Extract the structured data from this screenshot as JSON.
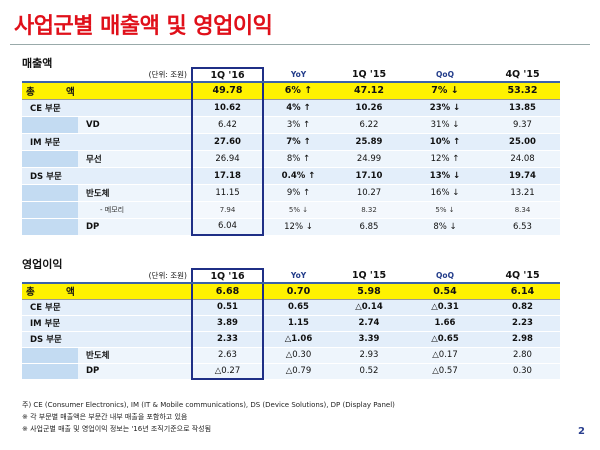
{
  "title": "사업군별 매출액 및 영업이익",
  "sections": [
    {
      "label": "매출액",
      "header": [
        "(단위: 조원)",
        "1Q '16",
        "YoY",
        "1Q '15",
        "QoQ",
        "4Q '15"
      ],
      "rows": [
        [
          "총 액",
          "49.78",
          "6% ↑",
          "47.12",
          "7% ↓",
          "53.32"
        ],
        [
          "CE 부문",
          "10.62",
          "4% ↑",
          "10.26",
          "23% ↓",
          "13.85"
        ],
        [
          "VD",
          "6.42",
          "3% ↑",
          "6.22",
          "31% ↓",
          "9.37"
        ],
        [
          "IM 부문",
          "27.60",
          "7% ↑",
          "25.89",
          "10% ↑",
          "25.00"
        ],
        [
          "무선",
          "26.94",
          "8% ↑",
          "24.99",
          "12% ↑",
          "24.08"
        ],
        [
          "DS 부문",
          "17.18",
          "0.4% ↑",
          "17.10",
          "13% ↓",
          "19.74"
        ],
        [
          "반도체",
          "11.15",
          "9% ↑",
          "10.27",
          "16% ↓",
          "13.21"
        ],
        [
          "- 메모리",
          "7.94",
          "5% ↓",
          "8.32",
          "5% ↓",
          "8.34"
        ],
        [
          "DP",
          "6.04",
          "12% ↓",
          "6.85",
          "8% ↓",
          "6.53"
        ]
      ]
    },
    {
      "label": "영업이익",
      "header": [
        "(단위: 조원)",
        "1Q '16",
        "YoY",
        "1Q '15",
        "QoQ",
        "4Q '15"
      ],
      "rows": [
        [
          "총 액",
          "6.68",
          "0.70",
          "5.98",
          "0.54",
          "6.14"
        ],
        [
          "CE 부문",
          "0.51",
          "0.65",
          "△0.14",
          "△0.31",
          "0.82"
        ],
        [
          "IM 부문",
          "3.89",
          "1.15",
          "2.74",
          "1.66",
          "2.23"
        ],
        [
          "DS 부문",
          "2.33",
          "△1.06",
          "3.39",
          "△0.65",
          "2.98"
        ],
        [
          "반도체",
          "2.63",
          "△0.30",
          "2.93",
          "△0.17",
          "2.80"
        ],
        [
          "DP",
          "△0.27",
          "△0.79",
          "0.52",
          "△0.57",
          "0.30"
        ]
      ]
    }
  ],
  "notes": [
    "주) CE (Consumer Electronics), IM (IT & Mobile communications), DS (Device Solutions), DP (Display Panel)",
    "※ 각 부문별 매출액은 부문간 내부 매출을 포함하고 있음",
    "※ 사업군별 매출 및 영업이익 정보는 '16년 조직기준으로 작성됨"
  ],
  "page_number": "2"
}
